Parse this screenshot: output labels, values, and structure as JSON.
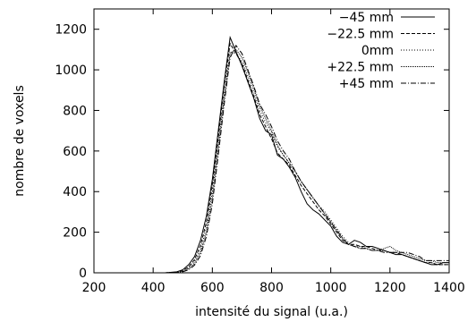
{
  "chart_data": {
    "type": "line",
    "xlabel": "intensité du signal (u.a.)",
    "ylabel": "nombre de voxels",
    "xlim": [
      200,
      1400
    ],
    "ylim": [
      0,
      1300
    ],
    "xticks": [
      200,
      400,
      600,
      800,
      1000,
      1200,
      1400
    ],
    "yticks": [
      0,
      200,
      400,
      600,
      800,
      1000,
      1200
    ],
    "grid": false,
    "legend_position": "top-right",
    "series": [
      {
        "name": "−45 mm",
        "dash": "solid",
        "x": [
          200,
          440,
          480,
          500,
          520,
          540,
          560,
          580,
          600,
          620,
          640,
          660,
          680,
          700,
          720,
          740,
          760,
          780,
          800,
          820,
          840,
          860,
          880,
          900,
          920,
          940,
          960,
          980,
          1000,
          1020,
          1040,
          1060,
          1080,
          1100,
          1120,
          1140,
          1160,
          1180,
          1200,
          1220,
          1240,
          1260,
          1280,
          1300,
          1320,
          1340,
          1360,
          1380,
          1400
        ],
        "y": [
          0,
          0,
          5,
          15,
          40,
          80,
          160,
          280,
          460,
          700,
          940,
          1160,
          1090,
          1020,
          940,
          860,
          760,
          700,
          680,
          580,
          560,
          520,
          470,
          400,
          340,
          310,
          290,
          260,
          230,
          180,
          150,
          140,
          160,
          150,
          130,
          130,
          120,
          110,
          100,
          90,
          90,
          80,
          70,
          60,
          50,
          40,
          40,
          50,
          50
        ]
      },
      {
        "name": "−22.5 mm",
        "dash": "dashed",
        "x": [
          200,
          440,
          480,
          500,
          520,
          540,
          560,
          580,
          600,
          620,
          640,
          660,
          680,
          700,
          720,
          740,
          760,
          780,
          800,
          820,
          840,
          860,
          880,
          900,
          920,
          940,
          960,
          980,
          1000,
          1020,
          1040,
          1060,
          1080,
          1100,
          1120,
          1140,
          1160,
          1180,
          1200,
          1220,
          1240,
          1260,
          1280,
          1300,
          1320,
          1340,
          1360,
          1380,
          1400
        ],
        "y": [
          0,
          0,
          3,
          10,
          30,
          65,
          135,
          250,
          430,
          670,
          920,
          1130,
          1080,
          1030,
          950,
          870,
          780,
          720,
          660,
          590,
          560,
          530,
          480,
          430,
          390,
          350,
          310,
          280,
          240,
          200,
          160,
          140,
          140,
          130,
          130,
          120,
          110,
          110,
          100,
          100,
          90,
          80,
          70,
          60,
          50,
          50,
          40,
          40,
          40
        ]
      },
      {
        "name": "0mm",
        "dash": "dotted",
        "x": [
          200,
          440,
          480,
          500,
          520,
          540,
          560,
          580,
          600,
          620,
          640,
          660,
          680,
          700,
          720,
          740,
          760,
          780,
          800,
          820,
          840,
          860,
          880,
          900,
          920,
          940,
          960,
          980,
          1000,
          1020,
          1040,
          1060,
          1080,
          1100,
          1120,
          1140,
          1160,
          1180,
          1200,
          1220,
          1240,
          1260,
          1280,
          1300,
          1320,
          1340,
          1360,
          1380,
          1400
        ],
        "y": [
          0,
          0,
          2,
          8,
          25,
          55,
          115,
          225,
          400,
          640,
          880,
          1090,
          1080,
          1040,
          970,
          890,
          800,
          740,
          690,
          620,
          580,
          540,
          500,
          450,
          410,
          370,
          330,
          300,
          260,
          220,
          180,
          150,
          130,
          130,
          120,
          110,
          110,
          110,
          100,
          100,
          90,
          80,
          70,
          60,
          50,
          50,
          40,
          40,
          40
        ]
      },
      {
        "name": "+22.5 mm",
        "dash": "densedot",
        "x": [
          200,
          440,
          480,
          500,
          520,
          540,
          560,
          580,
          600,
          620,
          640,
          660,
          680,
          700,
          720,
          740,
          760,
          780,
          800,
          820,
          840,
          860,
          880,
          900,
          920,
          940,
          960,
          980,
          1000,
          1020,
          1040,
          1060,
          1080,
          1100,
          1120,
          1140,
          1160,
          1180,
          1200,
          1220,
          1240,
          1260,
          1280,
          1300,
          1320,
          1340,
          1360,
          1380,
          1400
        ],
        "y": [
          0,
          0,
          2,
          6,
          20,
          45,
          100,
          200,
          370,
          610,
          860,
          1080,
          1100,
          1060,
          990,
          910,
          820,
          760,
          700,
          630,
          580,
          540,
          500,
          450,
          410,
          370,
          330,
          290,
          250,
          210,
          170,
          140,
          130,
          120,
          120,
          110,
          110,
          120,
          130,
          110,
          100,
          90,
          80,
          70,
          60,
          60,
          50,
          50,
          50
        ]
      },
      {
        "name": "+45 mm",
        "dash": "dashdot",
        "x": [
          200,
          440,
          480,
          500,
          520,
          540,
          560,
          580,
          600,
          620,
          640,
          660,
          680,
          700,
          720,
          740,
          760,
          780,
          800,
          820,
          840,
          860,
          880,
          900,
          920,
          940,
          960,
          980,
          1000,
          1020,
          1040,
          1060,
          1080,
          1100,
          1120,
          1140,
          1160,
          1180,
          1200,
          1220,
          1240,
          1260,
          1280,
          1300,
          1320,
          1340,
          1360,
          1380,
          1400
        ],
        "y": [
          0,
          0,
          1,
          5,
          15,
          38,
          85,
          180,
          340,
          580,
          830,
          1060,
          1120,
          1080,
          1000,
          920,
          830,
          780,
          720,
          650,
          600,
          560,
          500,
          450,
          410,
          370,
          330,
          290,
          250,
          210,
          170,
          140,
          130,
          120,
          120,
          110,
          110,
          100,
          100,
          100,
          100,
          100,
          90,
          80,
          60,
          60,
          60,
          60,
          60
        ]
      }
    ]
  }
}
